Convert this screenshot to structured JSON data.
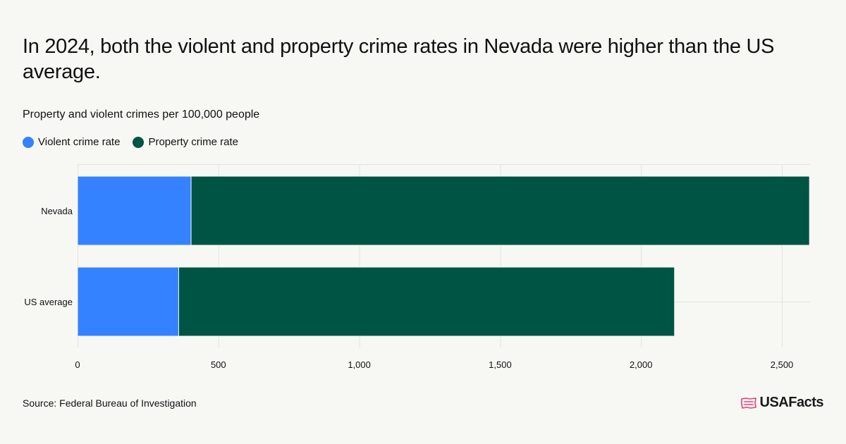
{
  "header": {
    "title": "In 2024, both the violent and property crime rates in Nevada were higher than the US average.",
    "subtitle": "Property and violent crimes per 100,000 people"
  },
  "colors": {
    "violent": "#3482ff",
    "property": "#005443",
    "grid": "#e4e4df",
    "background": "#f7f7f3",
    "logo_icon": "#e8417a"
  },
  "chart_data": {
    "type": "bar",
    "orientation": "horizontal",
    "stacked": true,
    "categories": [
      "Nevada",
      "US average"
    ],
    "series": [
      {
        "name": "Violent crime rate",
        "values": [
          403,
          359
        ]
      },
      {
        "name": "Property crime rate",
        "values": [
          2195,
          1760
        ]
      }
    ],
    "xlim": [
      0,
      2600
    ],
    "xticks": [
      0,
      500,
      1000,
      1500,
      2000,
      2500
    ],
    "xtick_labels": [
      "0",
      "500",
      "1,000",
      "1,500",
      "2,000",
      "2,500"
    ],
    "grid": true,
    "legend_position": "top-left"
  },
  "footer": {
    "source": "Source: Federal Bureau of Investigation",
    "logo_text": "USAFacts",
    "logo_icon": "usafacts-flag-icon"
  }
}
